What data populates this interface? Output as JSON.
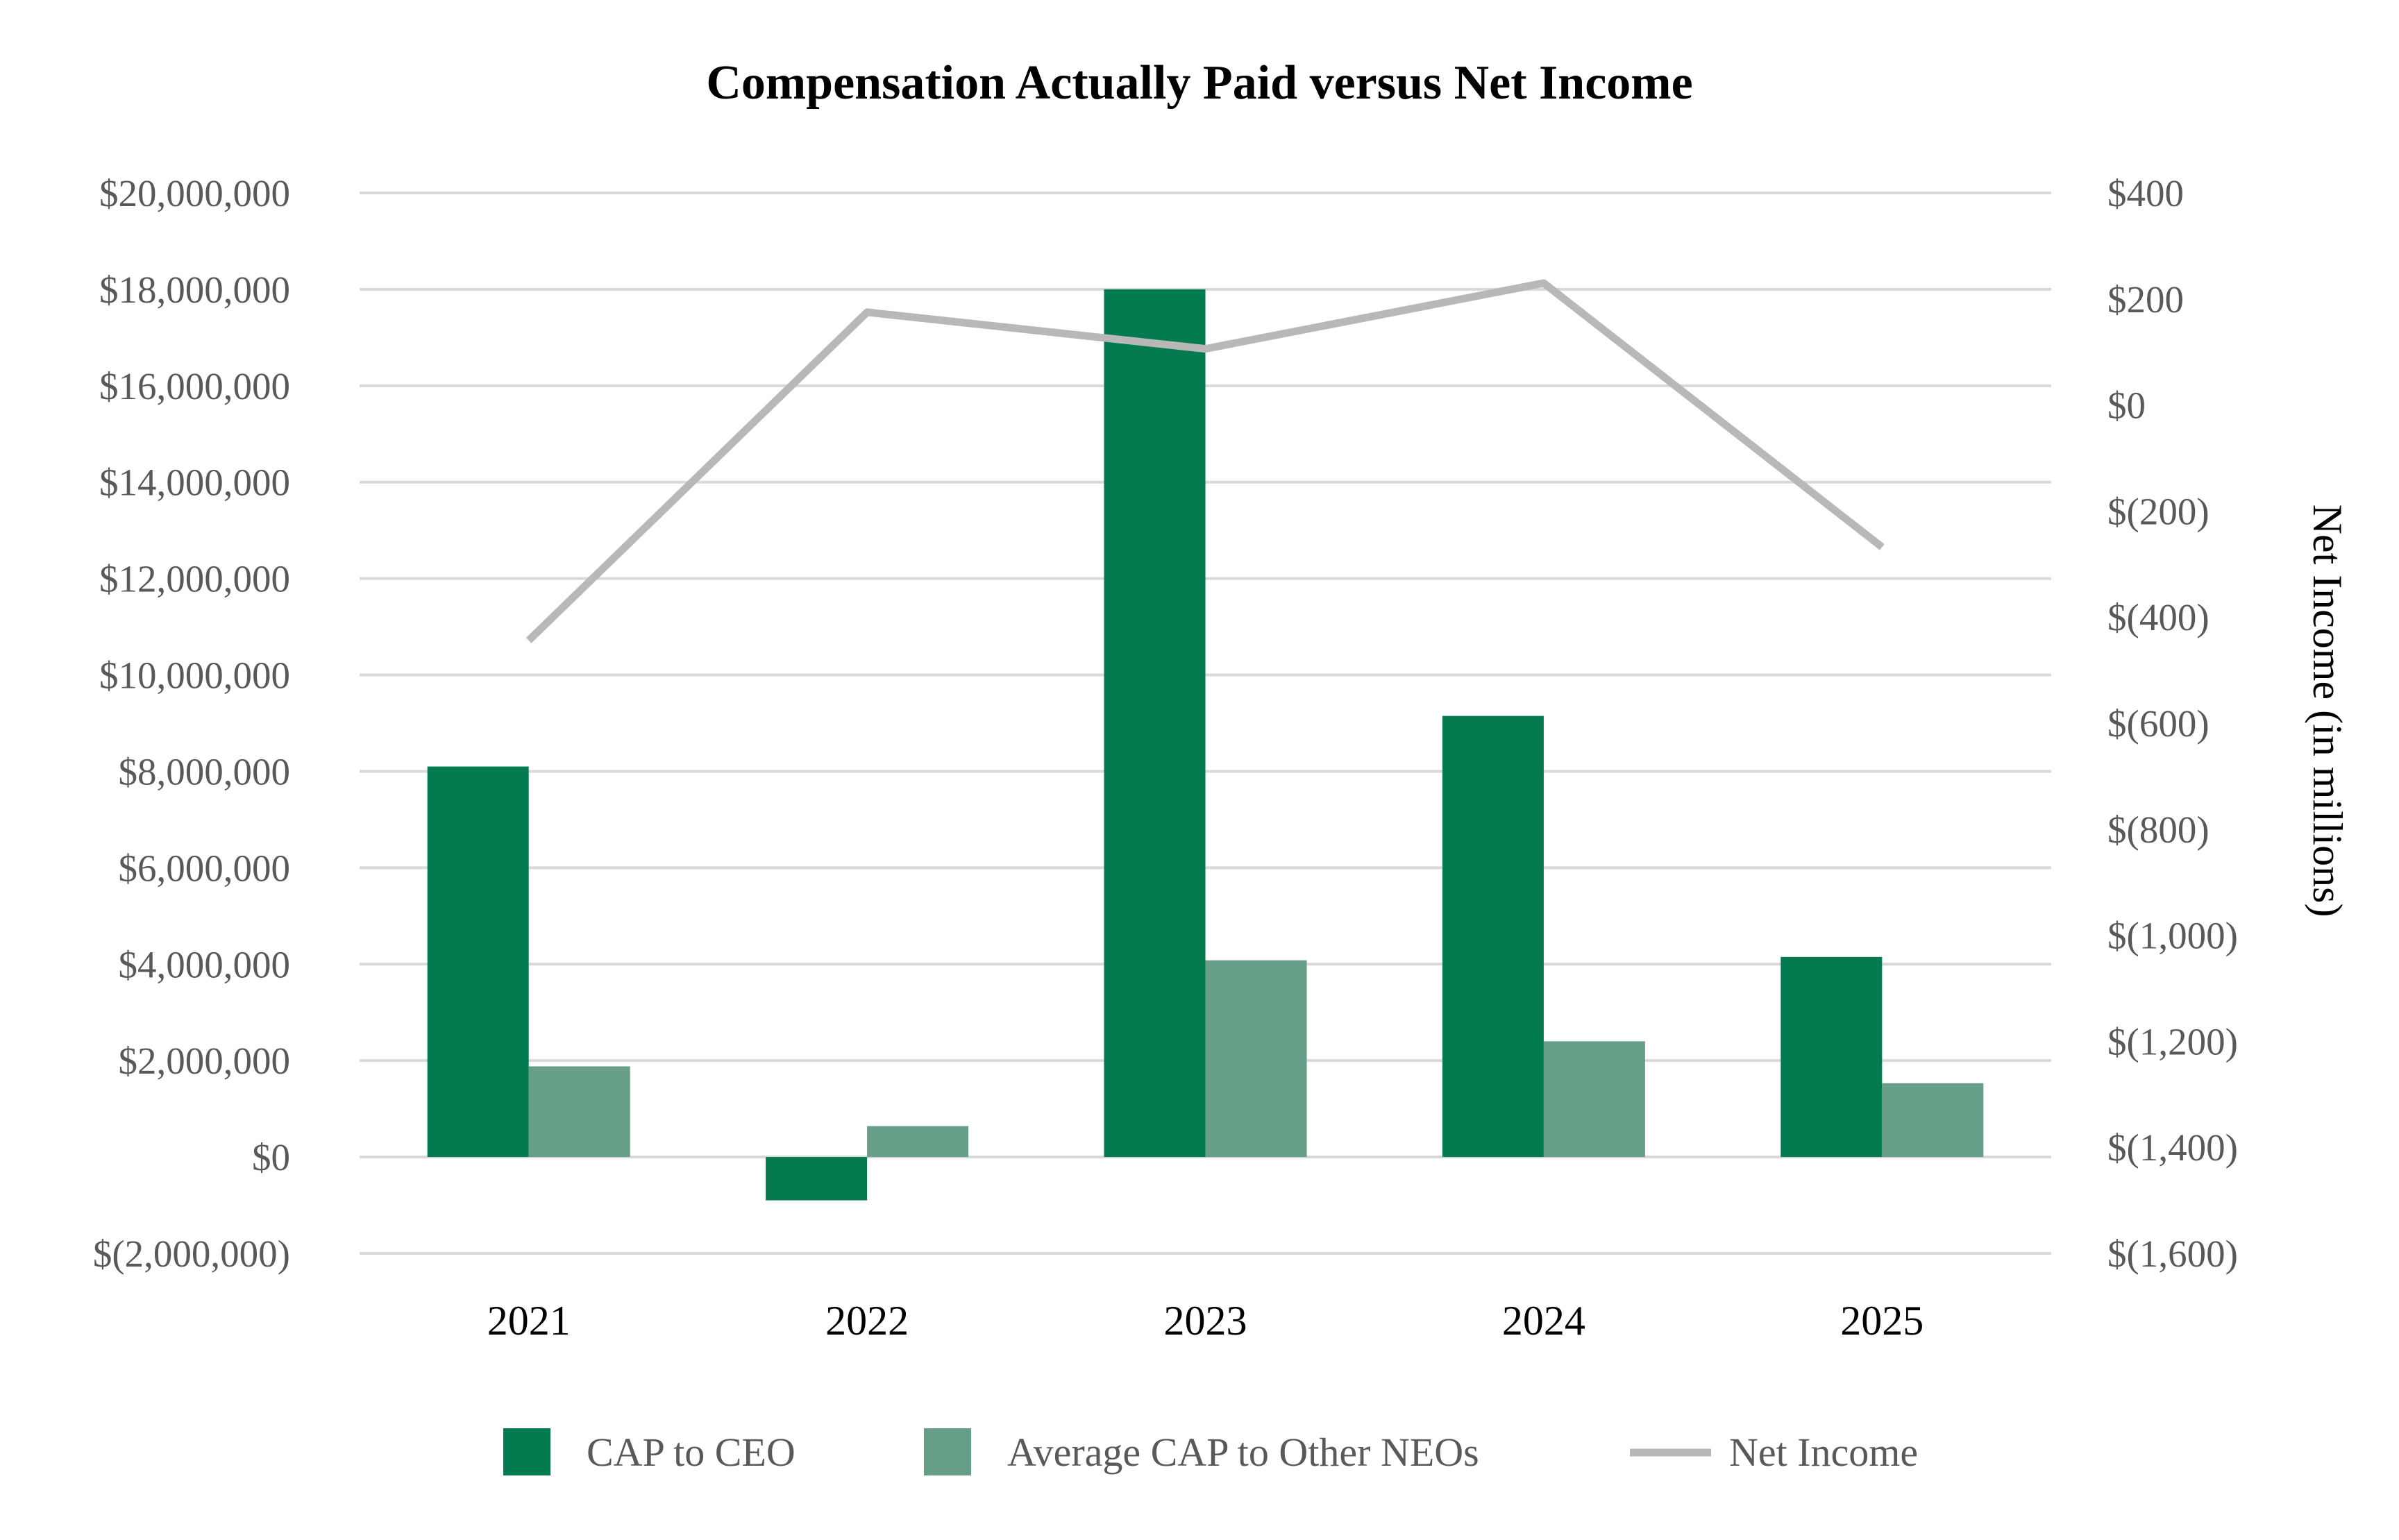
{
  "chart_data": {
    "type": "bar",
    "title": "Compensation Actually Paid versus Net Income",
    "categories": [
      "2021",
      "2022",
      "2023",
      "2024",
      "2025"
    ],
    "series": [
      {
        "name": "CAP to CEO",
        "kind": "bar",
        "axis": "left",
        "color": "#047A4F",
        "values": [
          8100000,
          -900000,
          18000000,
          9150000,
          4150000
        ]
      },
      {
        "name": "Average CAP to Other NEOs",
        "kind": "bar",
        "axis": "left",
        "color": "#679E88",
        "values": [
          1880000,
          640000,
          4080000,
          2400000,
          1530000
        ]
      },
      {
        "name": "Net Income",
        "kind": "line",
        "axis": "right",
        "color": "#B8B8B8",
        "values": [
          -444,
          175,
          106,
          230,
          -268
        ]
      }
    ],
    "y_left": {
      "label": "",
      "range": [
        -2000000,
        20000000
      ],
      "ticks": [
        -2000000,
        0,
        2000000,
        4000000,
        6000000,
        8000000,
        10000000,
        12000000,
        14000000,
        16000000,
        18000000,
        20000000
      ],
      "tick_labels": [
        "$(2,000,000)",
        "$0",
        "$2,000,000",
        "$4,000,000",
        "$6,000,000",
        "$8,000,000",
        "$10,000,000",
        "$12,000,000",
        "$14,000,000",
        "$16,000,000",
        "$18,000,000",
        "$20,000,000"
      ]
    },
    "y_right": {
      "label": "Net Income (in millions)",
      "range": [
        -1600,
        400
      ],
      "ticks": [
        -1600,
        -1400,
        -1200,
        -1000,
        -800,
        -600,
        -400,
        -200,
        0,
        200,
        400
      ],
      "tick_labels": [
        "$(1,600)",
        "$(1,400)",
        "$(1,200)",
        "$(1,000)",
        "$(800)",
        "$(600)",
        "$(400)",
        "$(200)",
        "$0",
        "$200",
        "$400"
      ]
    },
    "grid": true,
    "legend_position": "bottom"
  }
}
